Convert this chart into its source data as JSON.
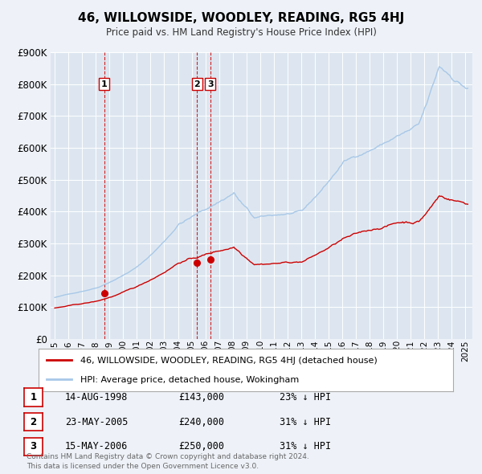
{
  "title": "46, WILLOWSIDE, WOODLEY, READING, RG5 4HJ",
  "subtitle": "Price paid vs. HM Land Registry's House Price Index (HPI)",
  "background_color": "#eef2f8",
  "plot_bg_color": "#dde6f0",
  "grid_color": "#ffffff",
  "ylim": [
    0,
    900000
  ],
  "yticks": [
    0,
    100000,
    200000,
    300000,
    400000,
    500000,
    600000,
    700000,
    800000,
    900000
  ],
  "ytick_labels": [
    "£0",
    "£100K",
    "£200K",
    "£300K",
    "£400K",
    "£500K",
    "£600K",
    "£700K",
    "£800K",
    "£900K"
  ],
  "xlim_start": 1994.7,
  "xlim_end": 2025.5,
  "hpi_color": "#a8c8e8",
  "price_color": "#cc0000",
  "sale_marker_color": "#cc0000",
  "sale_points": [
    {
      "year": 1998.619,
      "price": 143000,
      "label": "1"
    },
    {
      "year": 2005.388,
      "price": 240000,
      "label": "2"
    },
    {
      "year": 2006.369,
      "price": 250000,
      "label": "3"
    }
  ],
  "vline_years": [
    1998.619,
    2005.388,
    2006.369
  ],
  "vline_color": "#cc0000",
  "legend_label_price": "46, WILLOWSIDE, WOODLEY, READING, RG5 4HJ (detached house)",
  "legend_label_hpi": "HPI: Average price, detached house, Wokingham",
  "table_rows": [
    {
      "num": "1",
      "date": "14-AUG-1998",
      "price": "£143,000",
      "pct": "23% ↓ HPI"
    },
    {
      "num": "2",
      "date": "23-MAY-2005",
      "price": "£240,000",
      "pct": "31% ↓ HPI"
    },
    {
      "num": "3",
      "date": "15-MAY-2006",
      "price": "£250,000",
      "pct": "31% ↓ HPI"
    }
  ],
  "footer": "Contains HM Land Registry data © Crown copyright and database right 2024.\nThis data is licensed under the Open Government Licence v3.0.",
  "xticks": [
    1995,
    1996,
    1997,
    1998,
    1999,
    2000,
    2001,
    2002,
    2003,
    2004,
    2005,
    2006,
    2007,
    2008,
    2009,
    2010,
    2011,
    2012,
    2013,
    2014,
    2015,
    2016,
    2017,
    2018,
    2019,
    2020,
    2021,
    2022,
    2023,
    2024,
    2025
  ]
}
